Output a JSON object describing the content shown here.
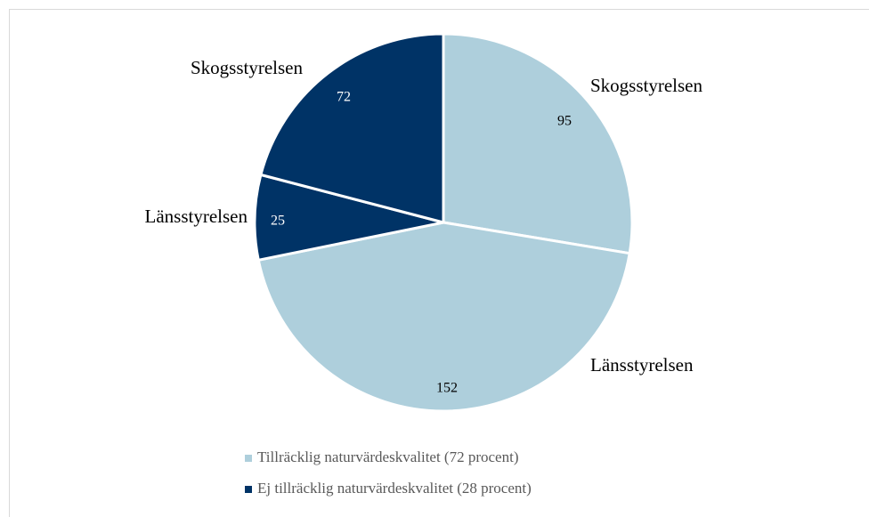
{
  "chart_data": {
    "type": "pie",
    "categories": [
      "Skogsstyrelsen",
      "Länsstyrelsen",
      "Länsstyrelsen",
      "Skogsstyrelsen"
    ],
    "values": [
      95,
      152,
      25,
      72
    ],
    "colors": [
      "#aecfdc",
      "#aecfdc",
      "#003366",
      "#003366"
    ],
    "legend": [
      {
        "name": "Tillräcklig naturvärdeskvalitet (72 procent)",
        "color": "#aecfdc"
      },
      {
        "name": "Ej tillräcklig naturvärdeskvalitet (28 procent)",
        "color": "#003366"
      }
    ]
  }
}
